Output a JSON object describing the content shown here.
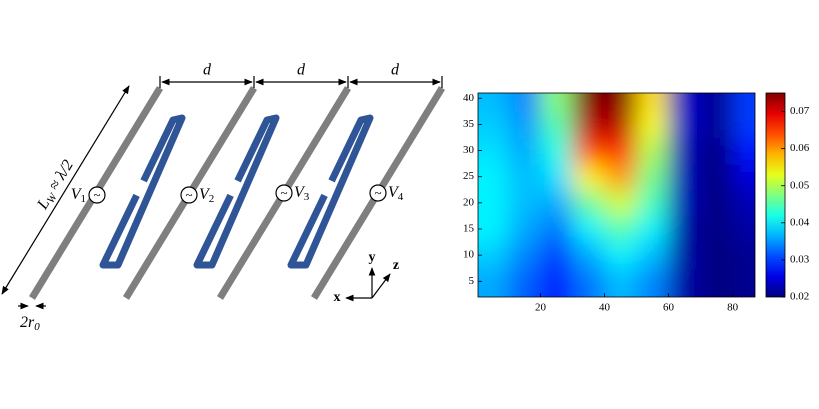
{
  "diagram": {
    "spacing_labels": [
      "d",
      "d",
      "d"
    ],
    "length_label": {
      "base": "L",
      "sub": "W",
      "rest": " ≈ λ/2"
    },
    "radius_label": {
      "base": "2r",
      "sub": "0"
    },
    "sources": [
      {
        "base": "V",
        "sub": "1"
      },
      {
        "base": "V",
        "sub": "2"
      },
      {
        "base": "V",
        "sub": "3"
      },
      {
        "base": "V",
        "sub": "4"
      }
    ],
    "source_symbol": "~",
    "axes": {
      "x": "x",
      "y": "y",
      "z": "z"
    }
  },
  "chart_data": {
    "type": "heatmap",
    "x": [
      5,
      15,
      25,
      35,
      45,
      55,
      65,
      75,
      85
    ],
    "y": [
      5,
      10,
      15,
      20,
      25,
      30,
      35,
      40
    ],
    "values": [
      [
        0.036,
        0.032,
        0.028,
        0.033,
        0.037,
        0.034,
        0.022,
        0.02,
        0.021
      ],
      [
        0.038,
        0.034,
        0.03,
        0.036,
        0.04,
        0.037,
        0.022,
        0.02,
        0.021
      ],
      [
        0.04,
        0.036,
        0.033,
        0.04,
        0.045,
        0.04,
        0.022,
        0.02,
        0.022
      ],
      [
        0.04,
        0.037,
        0.036,
        0.046,
        0.052,
        0.044,
        0.023,
        0.02,
        0.023
      ],
      [
        0.04,
        0.037,
        0.039,
        0.055,
        0.06,
        0.047,
        0.023,
        0.02,
        0.025
      ],
      [
        0.039,
        0.036,
        0.042,
        0.064,
        0.066,
        0.05,
        0.023,
        0.02,
        0.028
      ],
      [
        0.038,
        0.035,
        0.045,
        0.072,
        0.072,
        0.054,
        0.024,
        0.021,
        0.03
      ],
      [
        0.037,
        0.034,
        0.048,
        0.075,
        0.075,
        0.056,
        0.024,
        0.021,
        0.03
      ]
    ],
    "xlim": [
      0.5,
      87
    ],
    "ylim": [
      2,
      41
    ],
    "xticks": [
      20,
      40,
      60,
      80
    ],
    "yticks": [
      5,
      10,
      15,
      20,
      25,
      30,
      35,
      40
    ],
    "colormap": "jet",
    "clim": [
      0.02,
      0.075
    ],
    "cticks": [
      0.02,
      0.03,
      0.04,
      0.05,
      0.06,
      0.07
    ]
  }
}
